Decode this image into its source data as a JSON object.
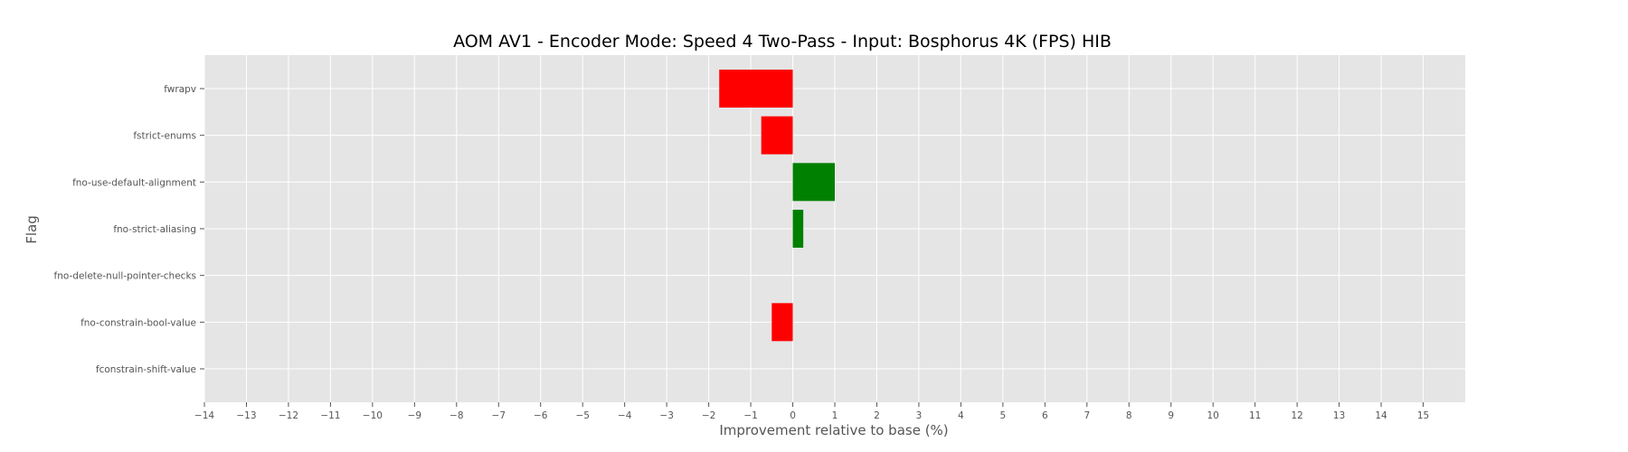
{
  "chart_data": {
    "type": "bar",
    "orientation": "horizontal",
    "title": "AOM AV1 - Encoder Mode: Speed 4 Two-Pass - Input: Bosphorus 4K (FPS) HIB",
    "xlabel": "Improvement relative to base (%)",
    "ylabel": "Flag",
    "xlim": [
      -14,
      16
    ],
    "xticks": [
      -14,
      -13,
      -12,
      -11,
      -10,
      -9,
      -8,
      -7,
      -6,
      -5,
      -4,
      -3,
      -2,
      -1,
      0,
      1,
      2,
      3,
      4,
      5,
      6,
      7,
      8,
      9,
      10,
      11,
      12,
      13,
      14,
      15
    ],
    "categories": [
      "fwrapv",
      "fstrict-enums",
      "fno-use-default-alignment",
      "fno-strict-aliasing",
      "fno-delete-null-pointer-checks",
      "fno-constrain-bool-value",
      "fconstrain-shift-value"
    ],
    "values": [
      -1.75,
      -0.75,
      1.0,
      0.25,
      0.0,
      -0.5,
      0.0
    ],
    "colors": {
      "positive": "#008000",
      "negative": "#ff0000"
    },
    "grid": true,
    "style": {
      "background": "#e5e5e5",
      "grid_color": "#ffffff"
    }
  }
}
